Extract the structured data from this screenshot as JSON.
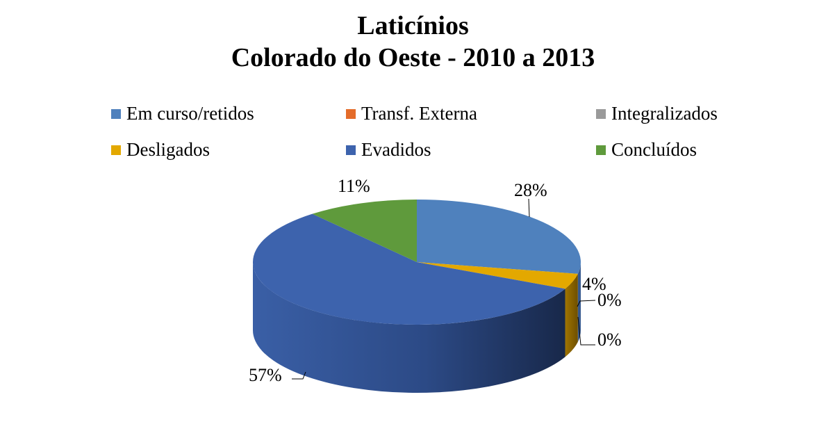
{
  "chart_data": {
    "type": "pie",
    "title_lines": [
      "Laticínios",
      "Colorado do Oeste - 2010 a 2013"
    ],
    "categories": [
      "Em curso/retidos",
      "Desligados",
      "Transf. Externa",
      "Integralizados",
      "Evadidos",
      "Concluídos"
    ],
    "values": [
      28,
      4,
      0,
      0,
      57,
      11
    ],
    "data_labels": [
      "28%",
      "4%",
      "0%",
      "0%",
      "57%",
      "11%"
    ],
    "colors": [
      "#4f81bd",
      "#e3a800",
      "#e46c2a",
      "#9a9a9a",
      "#3d63ad",
      "#5f9a3c"
    ],
    "legend": {
      "placement": "top",
      "rows": [
        [
          "Em curso/retidos",
          "Transf. Externa",
          "Integralizados"
        ],
        [
          "Desligados",
          "Evadidos",
          "Concluídos"
        ]
      ]
    },
    "style": "3d"
  }
}
